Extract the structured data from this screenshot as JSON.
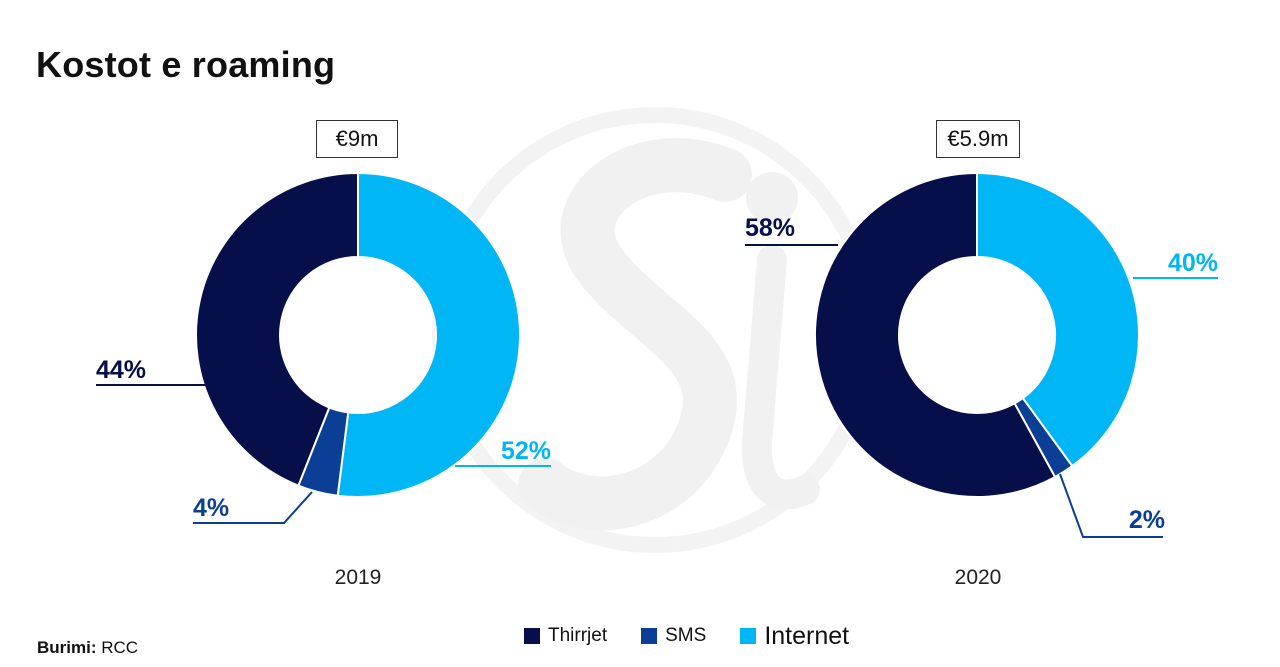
{
  "title": "Kostot e roaming",
  "source": {
    "label": "Burimi:",
    "value": "RCC"
  },
  "colors": {
    "thirrjet": "#060f4a",
    "sms": "#0b3f96",
    "internet": "#00b6f5"
  },
  "legend": [
    {
      "name": "Thirrjet",
      "color_key": "thirrjet"
    },
    {
      "name": "SMS",
      "color_key": "sms"
    },
    {
      "name": "Internet",
      "color_key": "internet"
    }
  ],
  "chart_data": [
    {
      "type": "donut",
      "year": "2019",
      "total_label": "€9m",
      "categories": [
        "Thirrjet",
        "SMS",
        "Internet"
      ],
      "values": [
        44,
        4,
        52
      ],
      "labels": [
        "44%",
        "4%",
        "52%"
      ]
    },
    {
      "type": "donut",
      "year": "2020",
      "total_label": "€5.9m",
      "categories": [
        "Thirrjet",
        "SMS",
        "Internet"
      ],
      "values": [
        58,
        2,
        40
      ],
      "labels": [
        "58%",
        "2%",
        "40%"
      ]
    }
  ]
}
